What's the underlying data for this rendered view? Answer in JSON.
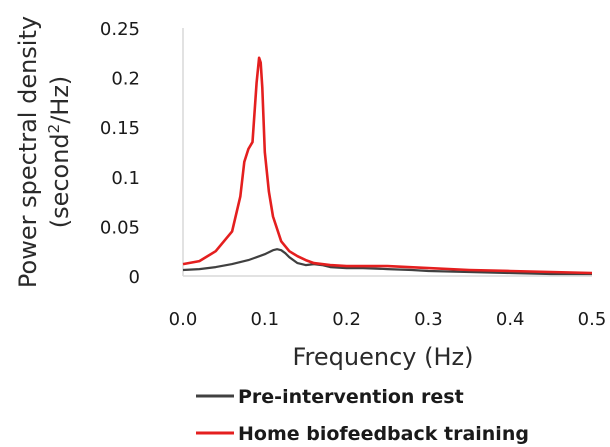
{
  "chart_data": {
    "type": "line",
    "xlabel": "Frequency (Hz)",
    "ylabel_line1": "Power spectral density",
    "ylabel_line2_pre": "(second",
    "ylabel_line2_sup": "2",
    "ylabel_line2_post": "/Hz)",
    "xlim": [
      0,
      0.5
    ],
    "ylim": [
      0,
      0.25
    ],
    "x_ticks": [
      "0.0",
      "0.1",
      "0.2",
      "0.3",
      "0.4",
      "0.5"
    ],
    "y_ticks": [
      "0",
      "0.05",
      "0.1",
      "0.15",
      "0.2",
      "0.25"
    ],
    "grid": false,
    "legend_position": "bottom",
    "series": [
      {
        "name": "Pre-intervention rest",
        "color": "#404040",
        "x": [
          0.0,
          0.02,
          0.04,
          0.06,
          0.08,
          0.09,
          0.1,
          0.11,
          0.115,
          0.12,
          0.125,
          0.13,
          0.14,
          0.15,
          0.16,
          0.17,
          0.18,
          0.2,
          0.22,
          0.25,
          0.28,
          0.3,
          0.35,
          0.4,
          0.45,
          0.5
        ],
        "y": [
          0.006,
          0.007,
          0.009,
          0.012,
          0.016,
          0.019,
          0.022,
          0.026,
          0.027,
          0.026,
          0.023,
          0.019,
          0.013,
          0.011,
          0.012,
          0.011,
          0.009,
          0.008,
          0.008,
          0.007,
          0.006,
          0.005,
          0.004,
          0.003,
          0.002,
          0.002
        ]
      },
      {
        "name": "Home biofeedback training",
        "color": "#e41f1f",
        "x": [
          0.0,
          0.02,
          0.04,
          0.06,
          0.07,
          0.075,
          0.08,
          0.085,
          0.09,
          0.093,
          0.095,
          0.097,
          0.1,
          0.105,
          0.11,
          0.12,
          0.13,
          0.14,
          0.15,
          0.16,
          0.18,
          0.2,
          0.22,
          0.25,
          0.3,
          0.35,
          0.4,
          0.45,
          0.5
        ],
        "y": [
          0.012,
          0.015,
          0.025,
          0.045,
          0.08,
          0.115,
          0.128,
          0.135,
          0.195,
          0.22,
          0.215,
          0.19,
          0.125,
          0.085,
          0.06,
          0.035,
          0.025,
          0.02,
          0.016,
          0.013,
          0.011,
          0.01,
          0.01,
          0.01,
          0.008,
          0.006,
          0.005,
          0.004,
          0.003
        ]
      }
    ]
  }
}
